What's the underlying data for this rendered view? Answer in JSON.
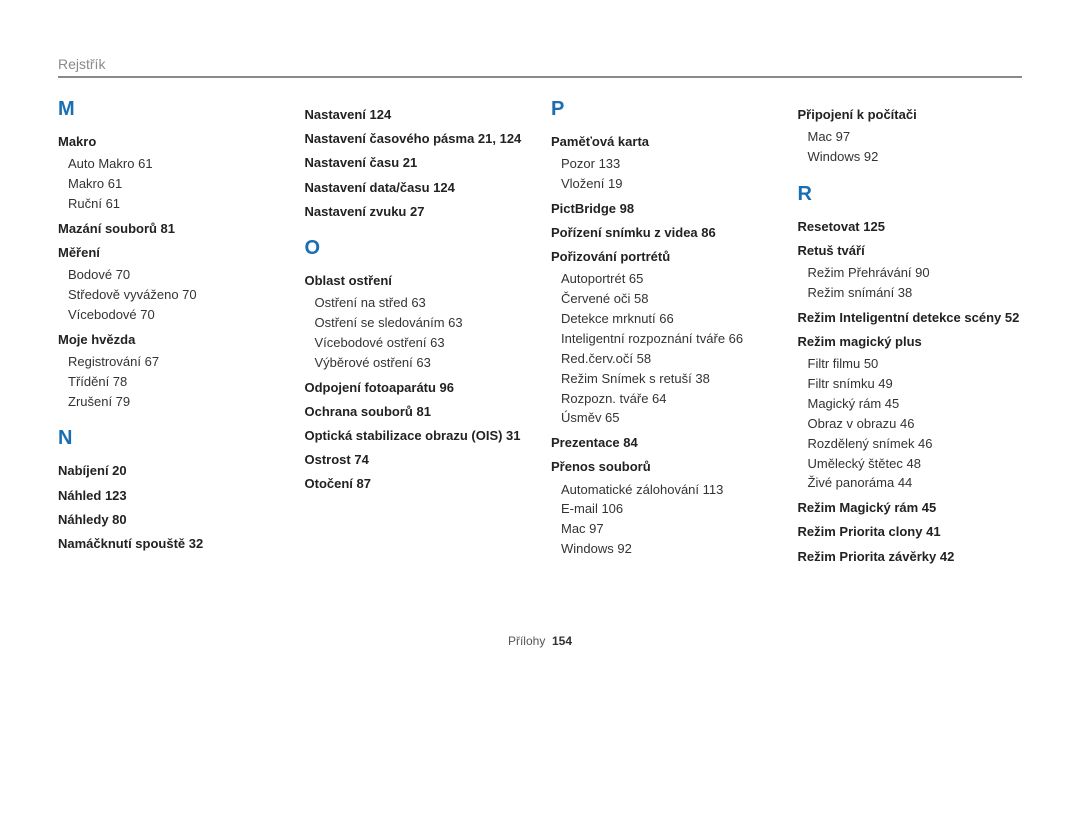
{
  "header": "Rejstřík",
  "footer": {
    "label": "Přílohy",
    "page": "154"
  },
  "columns": [
    {
      "groups": [
        {
          "letter": "M",
          "entries": [
            {
              "label": "Makro",
              "pages": "",
              "subs": [
                {
                  "label": "Auto Makro",
                  "pages": "61"
                },
                {
                  "label": "Makro",
                  "pages": "61"
                },
                {
                  "label": "Ruční",
                  "pages": "61"
                }
              ]
            },
            {
              "label": "Mazání souborů",
              "pages": "81"
            },
            {
              "label": "Měření",
              "pages": "",
              "subs": [
                {
                  "label": "Bodové",
                  "pages": "70"
                },
                {
                  "label": "Středově vyváženo",
                  "pages": "70"
                },
                {
                  "label": "Vícebodové",
                  "pages": "70"
                }
              ]
            },
            {
              "label": "Moje hvězda",
              "pages": "",
              "subs": [
                {
                  "label": "Registrování",
                  "pages": "67"
                },
                {
                  "label": "Třídění",
                  "pages": "78"
                },
                {
                  "label": "Zrušení",
                  "pages": "79"
                }
              ]
            }
          ]
        },
        {
          "letter": "N",
          "entries": [
            {
              "label": "Nabíjení",
              "pages": "20"
            },
            {
              "label": "Náhled",
              "pages": "123"
            },
            {
              "label": "Náhledy",
              "pages": "80"
            },
            {
              "label": "Namáčknutí spouště",
              "pages": "32"
            }
          ]
        }
      ]
    },
    {
      "groups": [
        {
          "letter": "",
          "entries": [
            {
              "label": "Nastavení",
              "pages": "124"
            },
            {
              "label": "Nastavení časového pásma",
              "pages": "21, 124"
            },
            {
              "label": "Nastavení času",
              "pages": "21"
            },
            {
              "label": "Nastavení data/času",
              "pages": "124"
            },
            {
              "label": "Nastavení zvuku",
              "pages": "27"
            }
          ]
        },
        {
          "letter": "O",
          "entries": [
            {
              "label": "Oblast ostření",
              "pages": "",
              "subs": [
                {
                  "label": "Ostření na střed",
                  "pages": "63"
                },
                {
                  "label": "Ostření se sledováním",
                  "pages": "63"
                },
                {
                  "label": "Vícebodové ostření",
                  "pages": "63"
                },
                {
                  "label": "Výběrové ostření",
                  "pages": "63"
                }
              ]
            },
            {
              "label": "Odpojení fotoaparátu",
              "pages": "96"
            },
            {
              "label": "Ochrana souborů",
              "pages": "81"
            },
            {
              "label": "Optická stabilizace obrazu (OIS)",
              "pages": "31"
            },
            {
              "label": "Ostrost",
              "pages": "74"
            },
            {
              "label": "Otočení",
              "pages": "87"
            }
          ]
        }
      ]
    },
    {
      "groups": [
        {
          "letter": "P",
          "entries": [
            {
              "label": "Paměťová karta",
              "pages": "",
              "subs": [
                {
                  "label": "Pozor",
                  "pages": "133"
                },
                {
                  "label": "Vložení",
                  "pages": "19"
                }
              ]
            },
            {
              "label": "PictBridge",
              "pages": "98"
            },
            {
              "label": "Pořízení snímku z videa",
              "pages": "86"
            },
            {
              "label": "Pořizování portrétů",
              "pages": "",
              "subs": [
                {
                  "label": "Autoportrét",
                  "pages": "65"
                },
                {
                  "label": "Červené oči",
                  "pages": "58"
                },
                {
                  "label": "Detekce mrknutí",
                  "pages": "66"
                },
                {
                  "label": "Inteligentní rozpoznání tváře",
                  "pages": "66"
                },
                {
                  "label": "Red.červ.očí",
                  "pages": "58"
                },
                {
                  "label": "Režim Snímek s retuší",
                  "pages": "38"
                },
                {
                  "label": "Rozpozn. tváře",
                  "pages": "64"
                },
                {
                  "label": "Úsměv",
                  "pages": "65"
                }
              ]
            },
            {
              "label": "Prezentace",
              "pages": "84"
            },
            {
              "label": "Přenos souborů",
              "pages": "",
              "subs": [
                {
                  "label": "Automatické zálohování",
                  "pages": "113"
                },
                {
                  "label": "E-mail",
                  "pages": "106"
                },
                {
                  "label": "Mac",
                  "pages": "97"
                },
                {
                  "label": "Windows",
                  "pages": "92"
                }
              ]
            }
          ]
        }
      ]
    },
    {
      "groups": [
        {
          "letter": "",
          "entries": [
            {
              "label": "Připojení k počítači",
              "pages": "",
              "subs": [
                {
                  "label": "Mac",
                  "pages": "97"
                },
                {
                  "label": "Windows",
                  "pages": "92"
                }
              ]
            }
          ]
        },
        {
          "letter": "R",
          "entries": [
            {
              "label": "Resetovat",
              "pages": "125"
            },
            {
              "label": "Retuš tváří",
              "pages": "",
              "subs": [
                {
                  "label": "Režim Přehrávání",
                  "pages": "90"
                },
                {
                  "label": "Režim snímání",
                  "pages": "38"
                }
              ]
            },
            {
              "label": "Režim Inteligentní detekce scény",
              "pages": "52"
            },
            {
              "label": "Režim magický plus",
              "pages": "",
              "subs": [
                {
                  "label": "Filtr filmu",
                  "pages": "50"
                },
                {
                  "label": "Filtr snímku",
                  "pages": "49"
                },
                {
                  "label": "Magický rám",
                  "pages": "45"
                },
                {
                  "label": "Obraz v obrazu",
                  "pages": "46"
                },
                {
                  "label": "Rozdělený snímek",
                  "pages": "46"
                },
                {
                  "label": "Umělecký štětec",
                  "pages": "48"
                },
                {
                  "label": "Živé panoráma",
                  "pages": "44"
                }
              ]
            },
            {
              "label": "Režim Magický rám",
              "pages": "45"
            },
            {
              "label": "Režim Priorita clony",
              "pages": "41"
            },
            {
              "label": "Režim Priorita závěrky",
              "pages": "42"
            }
          ]
        }
      ]
    }
  ]
}
